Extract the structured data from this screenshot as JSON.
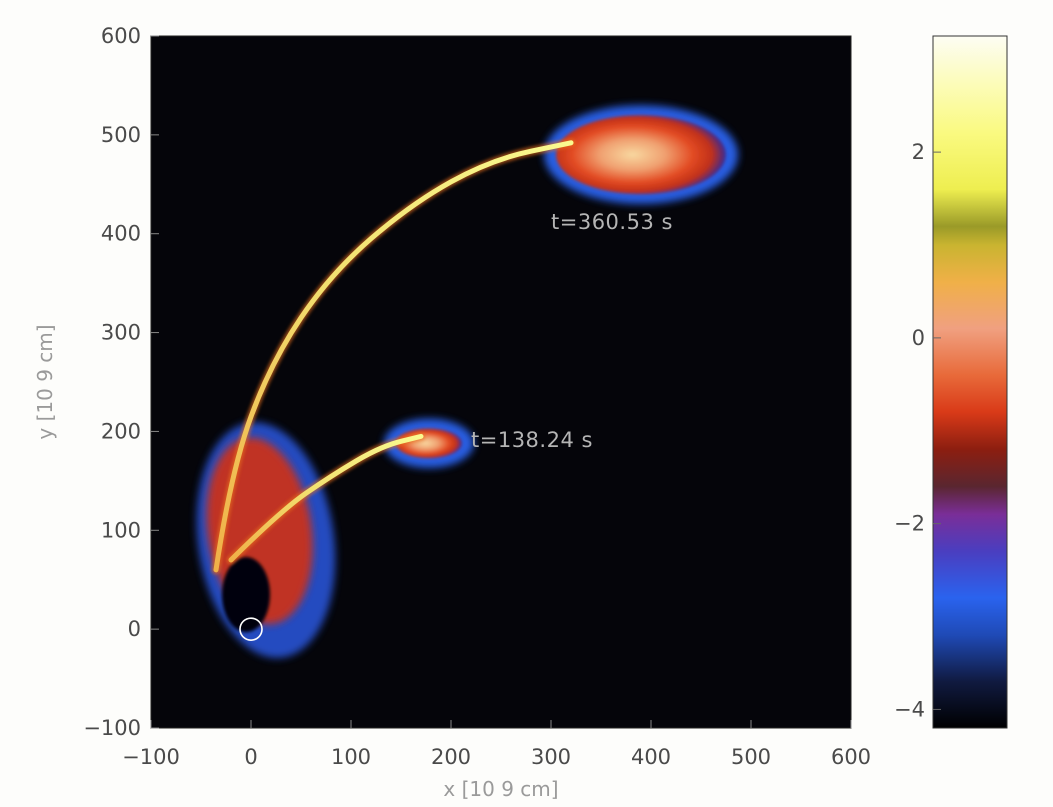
{
  "chart_data": {
    "type": "heatmap",
    "title": "",
    "xlabel": "x [10 9 cm]",
    "ylabel": "y [10 9 cm]",
    "xlim": [
      -100,
      600
    ],
    "ylim": [
      -100,
      600
    ],
    "x_ticks": [
      "−100",
      "0",
      "100",
      "200",
      "300",
      "400",
      "500",
      "600"
    ],
    "x_tick_values": [
      -100,
      0,
      100,
      200,
      300,
      400,
      500,
      600
    ],
    "y_ticks": [
      "−100",
      "0",
      "100",
      "200",
      "300",
      "400",
      "500",
      "600"
    ],
    "y_tick_values": [
      -100,
      0,
      100,
      200,
      300,
      400,
      500,
      600
    ],
    "background_color": "#05050a",
    "annotations": [
      {
        "text": "t=360.53 s",
        "x": 300,
        "y": 405
      },
      {
        "text": "t=138.24 s",
        "x": 220,
        "y": 184
      }
    ],
    "features": [
      {
        "kind": "stream",
        "points": [
          [
            -35,
            60
          ],
          [
            -20,
            160
          ],
          [
            20,
            270
          ],
          [
            80,
            360
          ],
          [
            160,
            430
          ],
          [
            240,
            475
          ],
          [
            320,
            492
          ]
        ]
      },
      {
        "kind": "stream",
        "points": [
          [
            -20,
            70
          ],
          [
            30,
            120
          ],
          [
            80,
            155
          ],
          [
            130,
            185
          ],
          [
            170,
            195
          ]
        ]
      },
      {
        "kind": "blob",
        "label": "t=360.53 s",
        "cx": 390,
        "cy": 480,
        "rx": 85,
        "ry": 40
      },
      {
        "kind": "blob",
        "label": "t=138.24 s",
        "cx": 178,
        "cy": 188,
        "rx": 33,
        "ry": 15
      }
    ],
    "marker": {
      "kind": "circle",
      "x": 0,
      "y": 0,
      "r": 11,
      "color": "#ffffff"
    },
    "colorbar": {
      "vmin": -4.2,
      "vmax": 3.25,
      "ticks": [
        "−4",
        "−2",
        "0",
        "2"
      ],
      "tick_values": [
        -4,
        -2,
        0,
        2
      ],
      "stops": [
        {
          "value": -4.2,
          "color": "#000000"
        },
        {
          "value": -3.7,
          "color": "#101a40"
        },
        {
          "value": -3.2,
          "color": "#1f4ab6"
        },
        {
          "value": -2.8,
          "color": "#2a63ee"
        },
        {
          "value": -2.3,
          "color": "#4a3ec0"
        },
        {
          "value": -1.9,
          "color": "#7a2e98"
        },
        {
          "value": -1.6,
          "color": "#5a2630"
        },
        {
          "value": -1.2,
          "color": "#8c1e10"
        },
        {
          "value": -0.8,
          "color": "#d93a18"
        },
        {
          "value": -0.4,
          "color": "#e86a3a"
        },
        {
          "value": 0.1,
          "color": "#f0a080"
        },
        {
          "value": 0.6,
          "color": "#f0b048"
        },
        {
          "value": 1.0,
          "color": "#c9b430"
        },
        {
          "value": 1.2,
          "color": "#9a9a28"
        },
        {
          "value": 1.6,
          "color": "#eeee50"
        },
        {
          "value": 2.2,
          "color": "#fafa80"
        },
        {
          "value": 2.8,
          "color": "#fcfcc0"
        },
        {
          "value": 3.25,
          "color": "#fdfdf4"
        }
      ]
    }
  }
}
